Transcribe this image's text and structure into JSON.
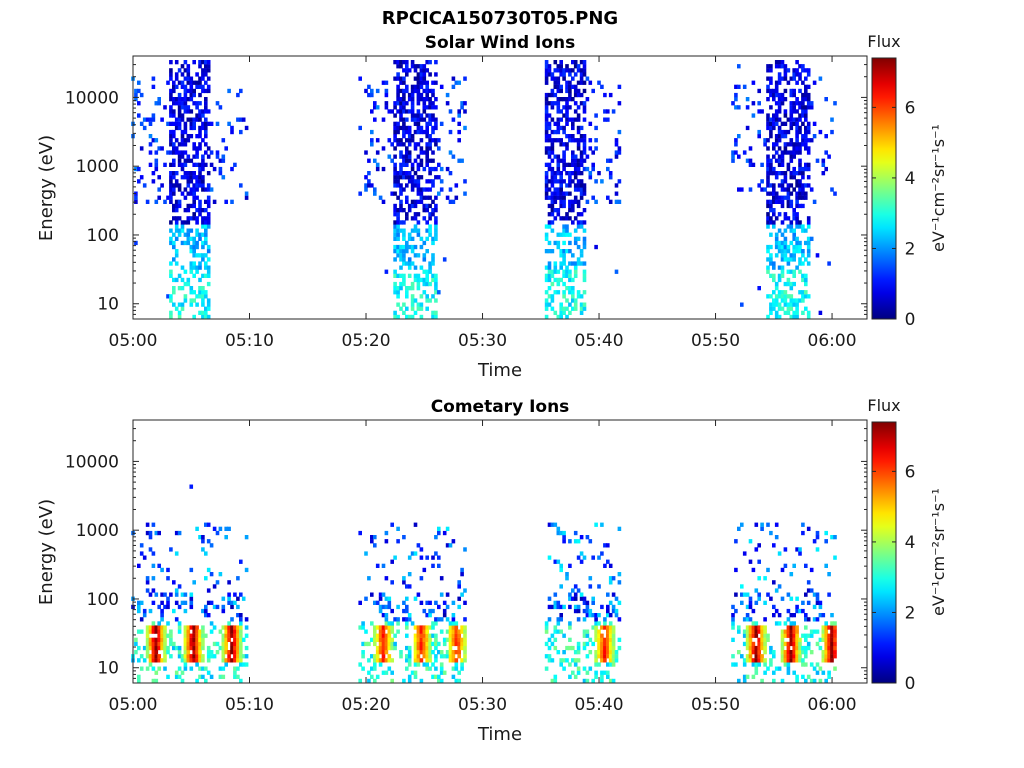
{
  "title": "RPCICA150730T05.PNG",
  "chart_data": [
    {
      "type": "heatmap",
      "title": "Solar Wind Ions",
      "xlabel": "Time",
      "ylabel": "Energy (eV)",
      "x_ticks": [
        "05:00",
        "05:10",
        "05:20",
        "05:30",
        "05:40",
        "05:50",
        "06:00"
      ],
      "x_range_minutes": [
        0,
        63
      ],
      "y_scale": "log",
      "y_range": [
        6,
        40000
      ],
      "y_ticks": [
        10,
        100,
        1000,
        10000
      ],
      "y_tick_labels": [
        "10",
        "100",
        "1000",
        "10000"
      ],
      "colorbar": {
        "label": "Flux",
        "units": "eV⁻¹cm⁻²sr⁻¹s⁻¹",
        "range": [
          0,
          7.4
        ],
        "ticks": [
          "0",
          "2",
          "4",
          "6"
        ],
        "colormap": "jet"
      },
      "bursts": [
        {
          "t_start": 0.0,
          "t_end": 9.8,
          "core_start": 3.2,
          "core_end": 6.5,
          "e_min": 6,
          "e_max": 35000,
          "flux": "low (0-3)"
        },
        {
          "t_start": 19.5,
          "t_end": 28.7,
          "core_start": 22.5,
          "core_end": 26.0,
          "e_min": 6,
          "e_max": 35000,
          "flux": "low (0-3)"
        },
        {
          "t_start": 35.5,
          "t_end": 42.0,
          "core_start": 35.5,
          "core_end": 38.8,
          "e_min": 6,
          "e_max": 35000,
          "flux": "low (0-3)"
        },
        {
          "t_start": 51.5,
          "t_end": 60.5,
          "core_start": 54.5,
          "core_end": 58.0,
          "e_min": 6,
          "e_max": 35000,
          "flux": "low (0-3)"
        }
      ]
    },
    {
      "type": "heatmap",
      "title": "Cometary Ions",
      "xlabel": "Time",
      "ylabel": "Energy (eV)",
      "x_ticks": [
        "05:00",
        "05:10",
        "05:20",
        "05:30",
        "05:40",
        "05:50",
        "06:00"
      ],
      "x_range_minutes": [
        0,
        63
      ],
      "y_scale": "log",
      "y_range": [
        6,
        40000
      ],
      "y_ticks": [
        10,
        100,
        1000,
        10000
      ],
      "y_tick_labels": [
        "10",
        "100",
        "1000",
        "10000"
      ],
      "colorbar": {
        "label": "Flux",
        "units": "eV⁻¹cm⁻²sr⁻¹s⁻¹",
        "range": [
          0,
          7.4
        ],
        "ticks": [
          "0",
          "2",
          "4",
          "6"
        ],
        "colormap": "jet"
      },
      "bursts": [
        {
          "t_start": 0.0,
          "t_end": 9.8,
          "e_min": 6,
          "e_max": 1300,
          "hot_spots_minutes": [
            2.0,
            5.2,
            8.5
          ],
          "hot_energy": [
            12,
            40
          ],
          "hot_flux": 7
        },
        {
          "t_start": 19.5,
          "t_end": 28.7,
          "e_min": 6,
          "e_max": 1400,
          "hot_spots_minutes": [
            21.5,
            24.8,
            27.8
          ],
          "hot_energy": [
            12,
            40
          ],
          "hot_flux": 6
        },
        {
          "t_start": 35.5,
          "t_end": 42.0,
          "e_min": 6,
          "e_max": 1500,
          "hot_spots_minutes": [
            40.5
          ],
          "hot_energy": [
            12,
            40
          ],
          "hot_flux": 6
        },
        {
          "t_start": 51.5,
          "t_end": 60.5,
          "e_min": 6,
          "e_max": 1300,
          "hot_spots_minutes": [
            53.5,
            56.5,
            60.0
          ],
          "hot_energy": [
            12,
            40
          ],
          "hot_flux": 7
        }
      ]
    }
  ]
}
